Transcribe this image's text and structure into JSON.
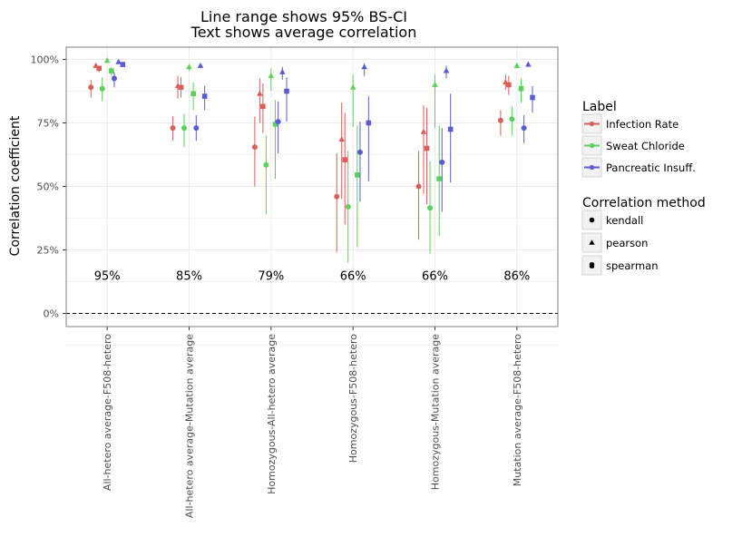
{
  "chart_data": {
    "type": "pointrange",
    "title": [
      "Line range shows 95% BS-CI",
      "Text shows average correlation"
    ],
    "ylabel": "Correlation coefficient",
    "xlabel": "",
    "ylim": [
      -0.05,
      1.05
    ],
    "yticks": [
      0,
      0.25,
      0.5,
      0.75,
      1.0
    ],
    "ytick_labels": [
      "0%",
      "25%",
      "50%",
      "75%",
      "100%"
    ],
    "reference_line": {
      "y": 0,
      "style": "dashed",
      "color": "#000000"
    },
    "grid": true,
    "legend_position": "right",
    "categories": [
      "All-hetero average-F508-hetero",
      "All-hetero average-Mutation average",
      "Homozygous-All-hetero average",
      "Homozygous-F508-hetero",
      "Homozygous-Mutation average",
      "Mutation average-F508-hetero"
    ],
    "annotations": [
      "95%",
      "85%",
      "79%",
      "66%",
      "66%",
      "86%"
    ],
    "annotation_y": 0.15,
    "series": [
      {
        "name": "Infection Rate",
        "color": "#E15759",
        "draw_color": "#d95f5a",
        "offsets": [
          -0.23,
          -0.16,
          -0.115
        ],
        "points": [
          {
            "kendall": [
              0.89,
              0.85,
              0.92
            ],
            "pearson": [
              0.975,
              0.965,
              0.98
            ],
            "spearman": [
              0.965,
              0.95,
              0.975
            ]
          },
          {
            "kendall": [
              0.73,
              0.68,
              0.775
            ],
            "pearson": [
              0.895,
              0.845,
              0.935
            ],
            "spearman": [
              0.89,
              0.85,
              0.93
            ]
          },
          {
            "kendall": [
              0.655,
              0.5,
              0.775
            ],
            "pearson": [
              0.865,
              0.75,
              0.925
            ],
            "spearman": [
              0.815,
              0.71,
              0.905
            ]
          },
          {
            "kendall": [
              0.46,
              0.24,
              0.63
            ],
            "pearson": [
              0.685,
              0.45,
              0.83
            ],
            "spearman": [
              0.605,
              0.35,
              0.79
            ]
          },
          {
            "kendall": [
              0.5,
              0.29,
              0.64
            ],
            "pearson": [
              0.715,
              0.47,
              0.82
            ],
            "spearman": [
              0.65,
              0.43,
              0.81
            ]
          },
          {
            "kendall": [
              0.76,
              0.7,
              0.8
            ],
            "pearson": [
              0.91,
              0.88,
              0.94
            ],
            "spearman": [
              0.9,
              0.86,
              0.935
            ]
          }
        ]
      },
      {
        "name": "Sweat Chloride",
        "color": "#59A14F",
        "draw_color": "#5ad15a",
        "offsets": [
          -0.07,
          0.0,
          0.06
        ],
        "points": [
          {
            "kendall": [
              0.885,
              0.835,
              0.93
            ],
            "pearson": [
              0.995,
              0.985,
              1.0
            ],
            "spearman": [
              0.955,
              0.935,
              0.97
            ]
          },
          {
            "kendall": [
              0.73,
              0.655,
              0.785
            ],
            "pearson": [
              0.97,
              0.955,
              0.98
            ],
            "spearman": [
              0.865,
              0.8,
              0.91
            ]
          },
          {
            "kendall": [
              0.585,
              0.39,
              0.7
            ],
            "pearson": [
              0.935,
              0.875,
              0.965
            ],
            "spearman": [
              0.745,
              0.53,
              0.84
            ]
          },
          {
            "kendall": [
              0.42,
              0.2,
              0.64
            ],
            "pearson": [
              0.89,
              0.735,
              0.94
            ],
            "spearman": [
              0.545,
              0.26,
              0.74
            ]
          },
          {
            "kendall": [
              0.415,
              0.235,
              0.6
            ],
            "pearson": [
              0.9,
              0.73,
              0.94
            ],
            "spearman": [
              0.53,
              0.305,
              0.74
            ]
          },
          {
            "kendall": [
              0.765,
              0.7,
              0.815
            ],
            "pearson": [
              0.975,
              0.965,
              0.985
            ],
            "spearman": [
              0.885,
              0.83,
              0.925
            ]
          }
        ]
      },
      {
        "name": "Pancreatic Insuff.",
        "color": "#4E79A7",
        "draw_color": "#5b5bd6",
        "offsets": [
          0.1,
          0.16,
          0.22
        ],
        "points": [
          {
            "kendall": [
              0.925,
              0.89,
              0.95
            ],
            "pearson": [
              0.99,
              0.985,
              0.995
            ],
            "spearman": [
              0.98,
              0.97,
              0.99
            ]
          },
          {
            "kendall": [
              0.73,
              0.68,
              0.78
            ],
            "pearson": [
              0.975,
              0.965,
              0.985
            ],
            "spearman": [
              0.855,
              0.8,
              0.895
            ]
          },
          {
            "kendall": [
              0.755,
              0.63,
              0.835
            ],
            "pearson": [
              0.95,
              0.92,
              0.97
            ],
            "spearman": [
              0.875,
              0.755,
              0.93
            ]
          },
          {
            "kendall": [
              0.635,
              0.44,
              0.755
            ],
            "pearson": [
              0.97,
              0.935,
              0.985
            ],
            "spearman": [
              0.75,
              0.52,
              0.855
            ]
          },
          {
            "kendall": [
              0.595,
              0.4,
              0.73
            ],
            "pearson": [
              0.955,
              0.925,
              0.975
            ],
            "spearman": [
              0.725,
              0.515,
              0.865
            ]
          },
          {
            "kendall": [
              0.73,
              0.67,
              0.78
            ],
            "pearson": [
              0.98,
              0.97,
              0.99
            ],
            "spearman": [
              0.85,
              0.79,
              0.895
            ]
          }
        ]
      }
    ],
    "legends": [
      {
        "title": "Label",
        "items": [
          "Infection Rate",
          "Sweat Chloride",
          "Pancreatic Insuff."
        ]
      },
      {
        "title": "Correlation method",
        "items": [
          "kendall",
          "pearson",
          "spearman"
        ]
      }
    ]
  }
}
